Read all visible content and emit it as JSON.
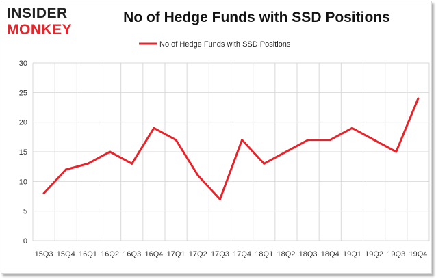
{
  "logo": {
    "line1": "INSIDER",
    "line2": "MONKEY"
  },
  "colors": {
    "series": "#e8232a",
    "logo_red": "#e8232a",
    "logo_dark": "#222222",
    "grid": "#d9d9d9"
  },
  "chart_data": {
    "type": "line",
    "title": "No of Hedge Funds with SSD Positions",
    "xlabel": "",
    "ylabel": "",
    "ylim": [
      0,
      30
    ],
    "yticks": [
      0,
      5,
      10,
      15,
      20,
      25,
      30
    ],
    "grid": true,
    "legend_position": "top-center",
    "categories": [
      "15Q3",
      "15Q4",
      "16Q1",
      "16Q2",
      "16Q3",
      "16Q4",
      "17Q1",
      "17Q2",
      "17Q3",
      "17Q4",
      "18Q1",
      "18Q2",
      "18Q3",
      "18Q4",
      "19Q1",
      "19Q2",
      "19Q3",
      "19Q4"
    ],
    "series": [
      {
        "name": "No of Hedge Funds with SSD Positions",
        "values": [
          8,
          12,
          13,
          15,
          13,
          19,
          17,
          11,
          7,
          17,
          13,
          15,
          17,
          17,
          19,
          17,
          15,
          24
        ]
      }
    ]
  }
}
